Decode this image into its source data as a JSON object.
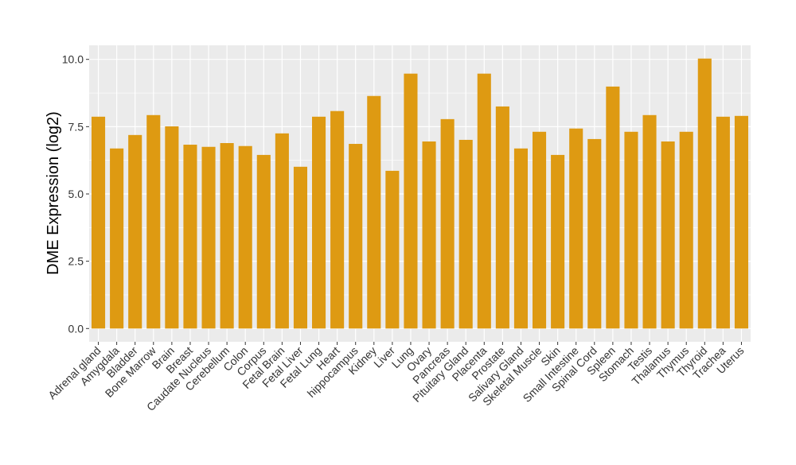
{
  "chart_data": {
    "type": "bar",
    "title": "",
    "xlabel": "",
    "ylabel": "DME Expression (log2)",
    "ylim": [
      -0.8,
      10.5
    ],
    "yticks": [
      0.0,
      2.5,
      5.0,
      7.5,
      10.0
    ],
    "ytick_labels": [
      "0.0",
      "2.5",
      "5.0",
      "7.5",
      "10.0"
    ],
    "grid": true,
    "bar_color": "#DE9A12",
    "panel_color": "#EBEBEB",
    "categories": [
      "Adrenal gland",
      "Amygdala",
      "Bladder",
      "Bone Marrow",
      "Brain",
      "Breast",
      "Caudate Nucleus",
      "Cerebellum",
      "Colon",
      "Corpus",
      "Fetal Brain",
      "Fetal Liver",
      "Fetal Lung",
      "Heart",
      "hippocampus",
      "Kidney",
      "Liver",
      "Lung",
      "Ovary",
      "Pancreas",
      "Pituitary Gland",
      "Placenta",
      "Prostate",
      "Salivary Gland",
      "Skeletal Muscle",
      "Skin",
      "Small Intestine",
      "Spinal Cord",
      "Spleen",
      "Stomach",
      "Testis",
      "Thalamus",
      "Thymus",
      "Thyroid",
      "Trachea",
      "Uterus"
    ],
    "values": [
      7.87,
      6.69,
      7.19,
      7.93,
      7.51,
      6.83,
      6.75,
      6.89,
      6.78,
      6.45,
      7.25,
      6.01,
      7.87,
      8.08,
      6.86,
      8.64,
      5.86,
      9.47,
      6.95,
      7.78,
      7.01,
      9.47,
      8.25,
      6.69,
      7.31,
      6.45,
      7.43,
      7.04,
      8.99,
      7.31,
      7.93,
      6.95,
      7.31,
      10.03,
      7.87,
      7.9
    ]
  }
}
